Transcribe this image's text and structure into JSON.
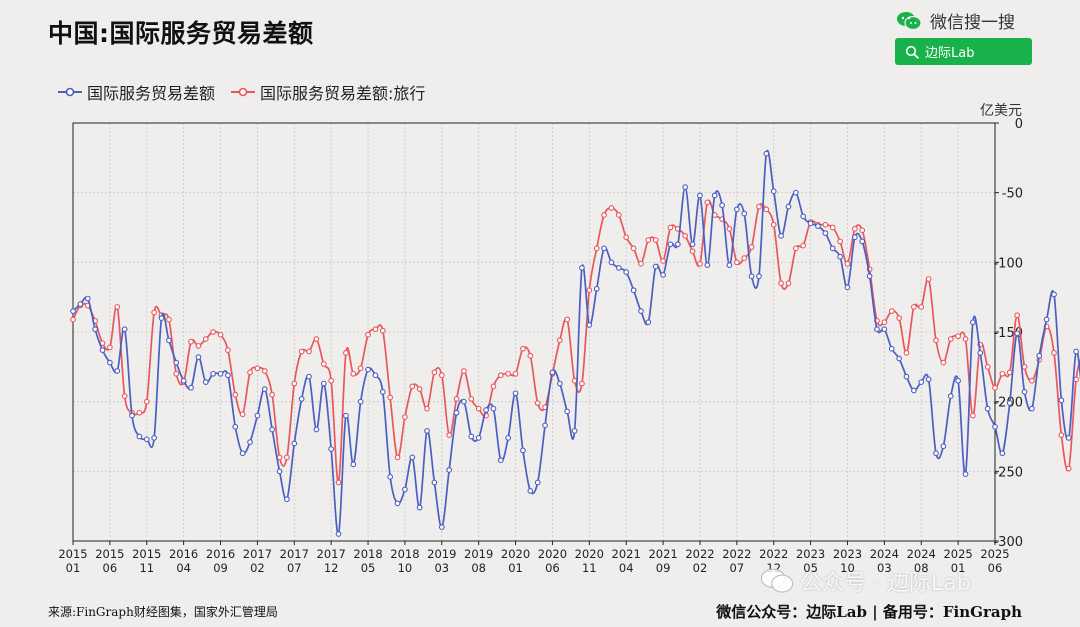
{
  "title": "中国:国际服务贸易差额",
  "wechat": {
    "search_text": "微信搜一搜",
    "button_text": "边际Lab"
  },
  "watermark": "公众号 · 边际Lab",
  "source": "来源:FinGraph财经图集，国家外汇管理局",
  "credit": "微信公众号：边际Lab  |  备用号：FinGraph",
  "colors": {
    "series1": "#4a5fc1",
    "series2": "#e8575c",
    "grid": "#c8c8c8",
    "wechat_green": "#19b24a"
  },
  "chart_data": {
    "type": "line",
    "title": "中国:国际服务贸易差额",
    "ylabel": "亿美元",
    "y_axis_position": "right",
    "ylim": [
      -300,
      0
    ],
    "yticks": [
      0,
      -50,
      -100,
      -150,
      -200,
      -250,
      -300
    ],
    "ytick_labels": [
      "0",
      "-50",
      "-100",
      "-150",
      "-200",
      "-250",
      "-300"
    ],
    "x_start": "2015-01",
    "x_end": "2025-06",
    "xticks": [
      [
        "2015",
        "01"
      ],
      [
        "2015",
        "06"
      ],
      [
        "2015",
        "11"
      ],
      [
        "2016",
        "04"
      ],
      [
        "2016",
        "09"
      ],
      [
        "2017",
        "02"
      ],
      [
        "2017",
        "07"
      ],
      [
        "2017",
        "12"
      ],
      [
        "2018",
        "05"
      ],
      [
        "2018",
        "10"
      ],
      [
        "2019",
        "03"
      ],
      [
        "2019",
        "08"
      ],
      [
        "2020",
        "01"
      ],
      [
        "2020",
        "06"
      ],
      [
        "2020",
        "11"
      ],
      [
        "2021",
        "04"
      ],
      [
        "2021",
        "09"
      ],
      [
        "2022",
        "02"
      ],
      [
        "2022",
        "07"
      ],
      [
        "2022",
        "12"
      ],
      [
        "2023",
        "05"
      ],
      [
        "2023",
        "10"
      ],
      [
        "2024",
        "03"
      ],
      [
        "2024",
        "08"
      ],
      [
        "2025",
        "01"
      ],
      [
        "2025",
        "06"
      ]
    ],
    "grid": true,
    "legend_position": "top-left",
    "series": [
      {
        "name": "国际服务贸易差额",
        "values": [
          -135,
          -130,
          -126,
          -148,
          -163,
          -172,
          -178,
          -148,
          -210,
          -225,
          -227,
          -226,
          -140,
          -156,
          -172,
          -185,
          -190,
          -168,
          -186,
          -180,
          -180,
          -181,
          -218,
          -237,
          -229,
          -210,
          -191,
          -220,
          -250,
          -270,
          -230,
          -198,
          -182,
          -220,
          -187,
          -234,
          -295,
          -210,
          -245,
          -200,
          -177,
          -181,
          -193,
          -254,
          -273,
          -263,
          -240,
          -276,
          -221,
          -258,
          -290,
          -249,
          -208,
          -200,
          -225,
          -226,
          -206,
          -205,
          -242,
          -226,
          -194,
          -235,
          -264,
          -258,
          -217,
          -179,
          -187,
          -207,
          -221,
          -104,
          -145,
          -119,
          -90,
          -100,
          -104,
          -107,
          -120,
          -135,
          -143,
          -103,
          -109,
          -87,
          -87,
          -46,
          -87,
          -52,
          -102,
          -52,
          -59,
          -102,
          -62,
          -65,
          -110,
          -110,
          -22,
          -49,
          -81,
          -60,
          -50,
          -67,
          -72,
          -74,
          -79,
          -90,
          -96,
          -118,
          -82,
          -85,
          -110,
          -148,
          -148,
          -162,
          -169,
          -182,
          -192,
          -186,
          -184,
          -237,
          -232,
          -196,
          -185,
          -252,
          -143,
          -165,
          -205,
          -218,
          -237,
          -201,
          -151,
          -193,
          -205,
          -167,
          -141,
          -123,
          -199,
          -226,
          -164,
          -194,
          -159,
          -156,
          -155,
          -146
        ]
      },
      {
        "name": "国际服务贸易差额:旅行",
        "values": [
          -141,
          -131,
          -131,
          -142,
          -158,
          -161,
          -132,
          -196,
          -208,
          -208,
          -200,
          -136,
          -138,
          -141,
          -180,
          -186,
          -157,
          -160,
          -155,
          -150,
          -152,
          -163,
          -195,
          -209,
          -179,
          -176,
          -178,
          -195,
          -240,
          -240,
          -187,
          -164,
          -164,
          -155,
          -173,
          -185,
          -258,
          -165,
          -180,
          -176,
          -152,
          -148,
          -149,
          -197,
          -240,
          -211,
          -189,
          -191,
          -205,
          -179,
          -181,
          -224,
          -198,
          -178,
          -198,
          -205,
          -210,
          -189,
          -181,
          -180,
          -180,
          -162,
          -167,
          -201,
          -204,
          -180,
          -156,
          -141,
          -185,
          -187,
          -120,
          -90,
          -66,
          -61,
          -66,
          -82,
          -90,
          -101,
          -84,
          -84,
          -99,
          -75,
          -76,
          -81,
          -92,
          -101,
          -57,
          -66,
          -69,
          -76,
          -100,
          -97,
          -89,
          -60,
          -62,
          -73,
          -115,
          -115,
          -90,
          -88,
          -71,
          -73,
          -73,
          -75,
          -85,
          -101,
          -76,
          -77,
          -105,
          -142,
          -143,
          -135,
          -140,
          -165,
          -132,
          -132,
          -112,
          -156,
          -172,
          -155,
          -153,
          -155,
          -210,
          -159,
          -175,
          -190,
          -180,
          -179,
          -138,
          -175,
          -185,
          -170,
          -146,
          -165,
          -224,
          -248,
          -184,
          -165,
          -152,
          -145,
          -140,
          -136
        ]
      }
    ]
  }
}
